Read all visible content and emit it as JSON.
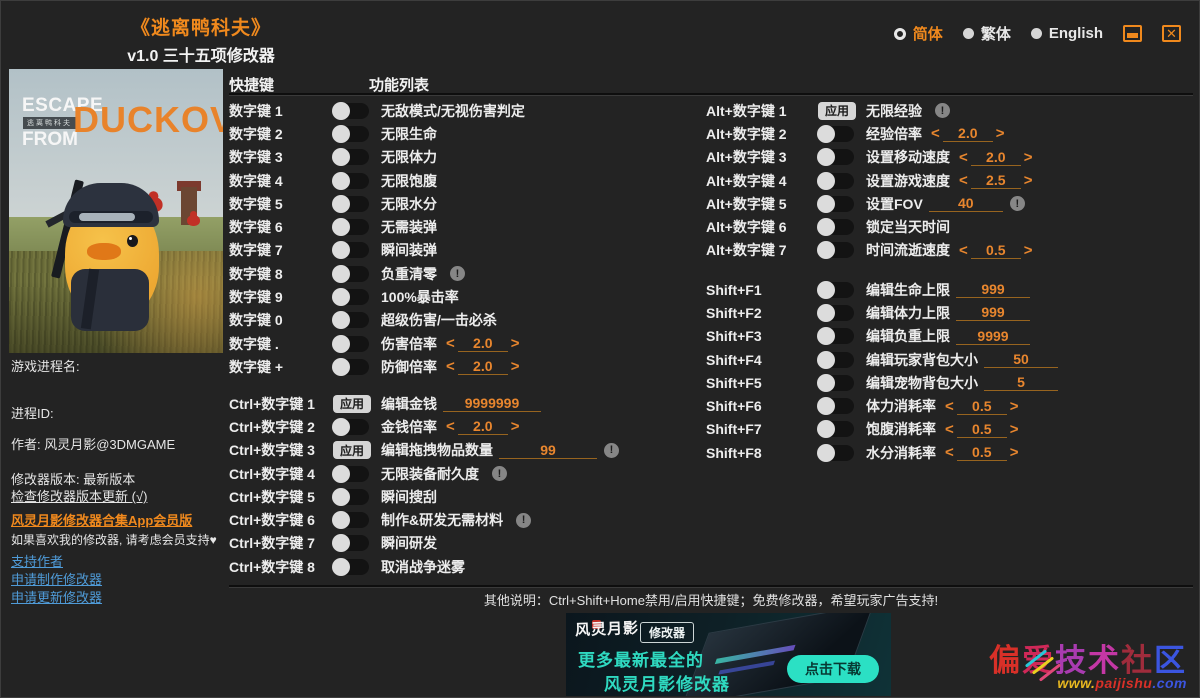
{
  "colors": {
    "accent": "#f0891d",
    "value_orange": "#e8862e",
    "link_blue": "#4f9bd8",
    "banner_teal": "#2fd9c0"
  },
  "header": {
    "title": "《逃离鸭科夫》",
    "subtitle": "v1.0 三十五项修改器",
    "languages": [
      {
        "label": "简体",
        "selected": true
      },
      {
        "label": "繁体",
        "selected": false
      },
      {
        "label": "English",
        "selected": false
      }
    ],
    "window_controls": {
      "close": "✕"
    }
  },
  "cover": {
    "escape": "ESCAPE",
    "from": "FROM",
    "duckov": "DUCKOV",
    "cn_title": "逃离鸭科夫"
  },
  "sidebar": {
    "process_name_label": "游戏进程名:",
    "process_id_label": "进程ID:",
    "author_line": "作者: 风灵月影@3DMGAME",
    "version_line": "修改器版本: 最新版本",
    "check_update_link": "检查修改器版本更新 (√)",
    "promo_link": "风灵月影修改器合集App会员版",
    "promo_note": "如果喜欢我的修改器, 请考虑会员支持♥",
    "links": [
      "支持作者",
      "申请制作修改器",
      "申请更新修改器"
    ]
  },
  "table": {
    "hotkey_header": "快捷键",
    "function_header": "功能列表",
    "apply_label": "应用",
    "groups": {
      "num": [
        {
          "hotkey": "数字键 1",
          "control": "toggle",
          "label": "无敌模式/无视伤害判定"
        },
        {
          "hotkey": "数字键 2",
          "control": "toggle",
          "label": "无限生命"
        },
        {
          "hotkey": "数字键 3",
          "control": "toggle",
          "label": "无限体力"
        },
        {
          "hotkey": "数字键 4",
          "control": "toggle",
          "label": "无限饱腹"
        },
        {
          "hotkey": "数字键 5",
          "control": "toggle",
          "label": "无限水分"
        },
        {
          "hotkey": "数字键 6",
          "control": "toggle",
          "label": "无需装弹"
        },
        {
          "hotkey": "数字键 7",
          "control": "toggle",
          "label": "瞬间装弹"
        },
        {
          "hotkey": "数字键 8",
          "control": "toggle",
          "label": "负重清零",
          "warn": true
        },
        {
          "hotkey": "数字键 9",
          "control": "toggle",
          "label": "100%暴击率"
        },
        {
          "hotkey": "数字键 0",
          "control": "toggle",
          "label": "超级伤害/一击必杀"
        },
        {
          "hotkey": "数字键 .",
          "control": "toggle",
          "label": "伤害倍率",
          "extra": {
            "type": "stepper",
            "value": "2.0"
          }
        },
        {
          "hotkey": "数字键 +",
          "control": "toggle",
          "label": "防御倍率",
          "extra": {
            "type": "stepper",
            "value": "2.0"
          }
        }
      ],
      "ctrl": [
        {
          "hotkey": "Ctrl+数字键 1",
          "control": "apply",
          "label": "编辑金钱",
          "extra": {
            "type": "input",
            "value": "9999999",
            "wide": true
          }
        },
        {
          "hotkey": "Ctrl+数字键 2",
          "control": "toggle",
          "label": "金钱倍率",
          "extra": {
            "type": "stepper",
            "value": "2.0"
          }
        },
        {
          "hotkey": "Ctrl+数字键 3",
          "control": "apply",
          "label": "编辑拖拽物品数量",
          "extra": {
            "type": "input",
            "value": "99",
            "wide": true
          },
          "warn": true
        },
        {
          "hotkey": "Ctrl+数字键 4",
          "control": "toggle",
          "label": "无限装备耐久度",
          "warn": true
        },
        {
          "hotkey": "Ctrl+数字键 5",
          "control": "toggle",
          "label": "瞬间搜刮"
        },
        {
          "hotkey": "Ctrl+数字键 6",
          "control": "toggle",
          "label": "制作&研发无需材料",
          "warn": true
        },
        {
          "hotkey": "Ctrl+数字键 7",
          "control": "toggle",
          "label": "瞬间研发"
        },
        {
          "hotkey": "Ctrl+数字键 8",
          "control": "toggle",
          "label": "取消战争迷雾"
        }
      ],
      "alt": [
        {
          "hotkey": "Alt+数字键 1",
          "control": "apply",
          "label": "无限经验",
          "warn": true
        },
        {
          "hotkey": "Alt+数字键 2",
          "control": "toggle",
          "label": "经验倍率",
          "extra": {
            "type": "stepper",
            "value": "2.0"
          }
        },
        {
          "hotkey": "Alt+数字键 3",
          "control": "toggle",
          "label": "设置移动速度",
          "extra": {
            "type": "stepper",
            "value": "2.0"
          }
        },
        {
          "hotkey": "Alt+数字键 4",
          "control": "toggle",
          "label": "设置游戏速度",
          "extra": {
            "type": "stepper",
            "value": "2.5"
          }
        },
        {
          "hotkey": "Alt+数字键 5",
          "control": "toggle",
          "label": "设置FOV",
          "extra": {
            "type": "input",
            "value": "40"
          },
          "warn": true
        },
        {
          "hotkey": "Alt+数字键 6",
          "control": "toggle",
          "label": "锁定当天时间"
        },
        {
          "hotkey": "Alt+数字键 7",
          "control": "toggle",
          "label": "时间流逝速度",
          "extra": {
            "type": "stepper",
            "value": "0.5"
          }
        }
      ],
      "shift": [
        {
          "hotkey": "Shift+F1",
          "control": "toggle",
          "label": "编辑生命上限",
          "extra": {
            "type": "input",
            "value": "999"
          }
        },
        {
          "hotkey": "Shift+F2",
          "control": "toggle",
          "label": "编辑体力上限",
          "extra": {
            "type": "input",
            "value": "999"
          }
        },
        {
          "hotkey": "Shift+F3",
          "control": "toggle",
          "label": "编辑负重上限",
          "extra": {
            "type": "input",
            "value": "9999"
          }
        },
        {
          "hotkey": "Shift+F4",
          "control": "toggle",
          "label": "编辑玩家背包大小",
          "extra": {
            "type": "input",
            "value": "50"
          }
        },
        {
          "hotkey": "Shift+F5",
          "control": "toggle",
          "label": "编辑宠物背包大小",
          "extra": {
            "type": "input",
            "value": "5"
          }
        },
        {
          "hotkey": "Shift+F6",
          "control": "toggle",
          "label": "体力消耗率",
          "extra": {
            "type": "stepper",
            "value": "0.5"
          }
        },
        {
          "hotkey": "Shift+F7",
          "control": "toggle",
          "label": "饱腹消耗率",
          "extra": {
            "type": "stepper",
            "value": "0.5"
          }
        },
        {
          "hotkey": "Shift+F8",
          "control": "toggle",
          "label": "水分消耗率",
          "extra": {
            "type": "stepper",
            "value": "0.5"
          }
        }
      ]
    }
  },
  "footer": {
    "note": "其他说明：Ctrl+Shift+Home禁用/启用快捷键；免费修改器，希望玩家广告支持!"
  },
  "banner": {
    "logo": "风灵月影",
    "badge": "修改器",
    "line1": "更多最新最全的",
    "line2": "风灵月影修改器",
    "button": "点击下载"
  },
  "watermark": {
    "text": "偏爱技术社区",
    "char_colors": [
      "#d83028",
      "#d02858",
      "#a93bb0",
      "#c437a5",
      "#a02c3c",
      "#3b55e0"
    ],
    "url_segments": [
      {
        "text": "www.",
        "color": "#e8b820"
      },
      {
        "text": "paijishu",
        "color": "#d83028"
      },
      {
        "text": ".com",
        "color": "#3b55e0"
      }
    ]
  }
}
